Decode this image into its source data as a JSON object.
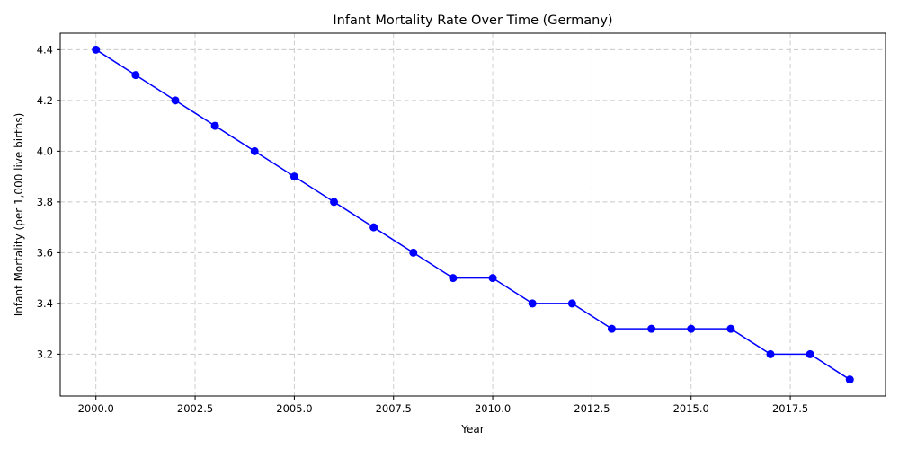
{
  "chart_data": {
    "type": "line",
    "title": "Infant Mortality Rate Over Time (Germany)",
    "xlabel": "Year",
    "ylabel": "Infant Mortality (per 1,000 live births)",
    "xlim": [
      1999.1,
      2019.9
    ],
    "ylim": [
      3.035,
      4.465
    ],
    "xticks": [
      2000.0,
      2002.5,
      2005.0,
      2007.5,
      2010.0,
      2012.5,
      2015.0,
      2017.5
    ],
    "xtick_labels": [
      "2000.0",
      "2002.5",
      "2005.0",
      "2007.5",
      "2010.0",
      "2012.5",
      "2015.0",
      "2017.5"
    ],
    "yticks": [
      3.2,
      3.4,
      3.6,
      3.8,
      4.0,
      4.2,
      4.4
    ],
    "ytick_labels": [
      "3.2",
      "3.4",
      "3.6",
      "3.8",
      "4.0",
      "4.2",
      "4.4"
    ],
    "grid": true,
    "x": [
      2000,
      2001,
      2002,
      2003,
      2004,
      2005,
      2006,
      2007,
      2008,
      2009,
      2010,
      2011,
      2012,
      2013,
      2014,
      2015,
      2016,
      2017,
      2018,
      2019
    ],
    "series": [
      {
        "color": "#0000ff",
        "marker": "circle",
        "values": [
          4.4,
          4.3,
          4.2,
          4.1,
          4.0,
          3.9,
          3.8,
          3.7,
          3.6,
          3.5,
          3.5,
          3.4,
          3.4,
          3.3,
          3.3,
          3.3,
          3.3,
          3.2,
          3.2,
          3.1
        ]
      }
    ]
  }
}
